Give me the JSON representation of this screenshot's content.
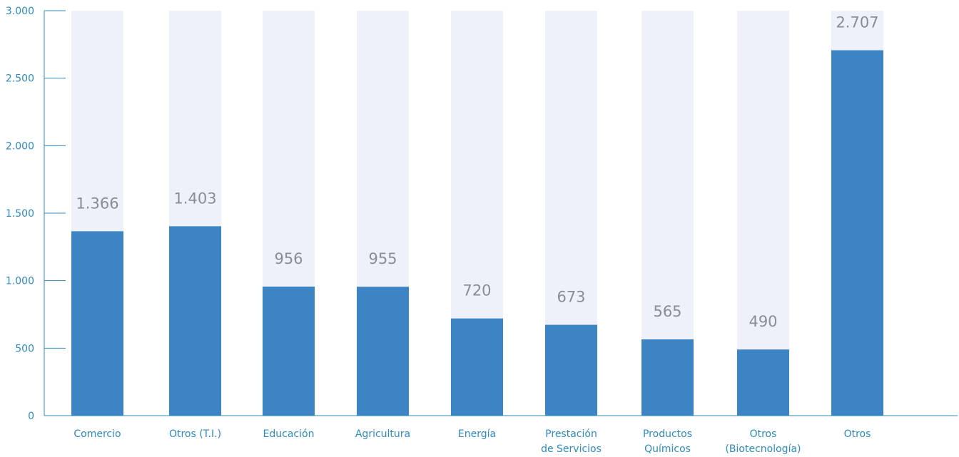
{
  "chart_data": {
    "type": "bar",
    "categories": [
      [
        "Comercio"
      ],
      [
        "Otros (T.I.)"
      ],
      [
        "Educación"
      ],
      [
        "Agricultura"
      ],
      [
        "Energía"
      ],
      [
        "Prestación",
        "de Servicios"
      ],
      [
        "Productos",
        "Químicos"
      ],
      [
        "Otros",
        "(Biotecnología)"
      ],
      [
        "Otros"
      ]
    ],
    "values": [
      1366,
      1403,
      956,
      955,
      720,
      673,
      565,
      490,
      2707
    ],
    "value_labels": [
      "1.366",
      "1.403",
      "956",
      "955",
      "720",
      "673",
      "565",
      "490",
      "2.707"
    ],
    "ylim": [
      0,
      3000
    ],
    "yticks": [
      0,
      500,
      1000,
      1500,
      2000,
      2500,
      3000
    ],
    "ytick_labels": [
      "0",
      "500",
      "1.000",
      "1.500",
      "2.000",
      "2.500",
      "3.000"
    ],
    "title": "",
    "xlabel": "",
    "ylabel": "",
    "grid": false,
    "legend": "none"
  },
  "colors": {
    "bar": "#3D84C4",
    "bar_background": "#EEF1FA",
    "axis": "#2E8BC0",
    "value_label": "#8A8D91"
  }
}
